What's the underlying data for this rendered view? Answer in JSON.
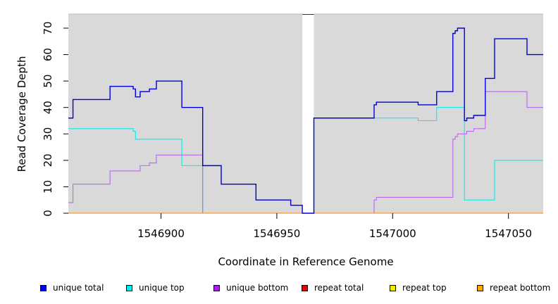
{
  "chart_data": {
    "type": "line",
    "xlabel": "Coordinate in Reference Genome",
    "ylabel": "Read Coverage Depth",
    "xlim": [
      1546860,
      1547065
    ],
    "ylim": [
      0,
      75
    ],
    "x_ticks": [
      1546900,
      1546950,
      1547000,
      1547050
    ],
    "x_tick_labels": [
      "1546900",
      "1546950",
      "1547000",
      "1547050"
    ],
    "y_ticks": [
      0,
      10,
      20,
      30,
      40,
      50,
      60,
      70
    ],
    "y_tick_labels": [
      "0",
      "10",
      "20",
      "30",
      "40",
      "50",
      "60",
      "70"
    ],
    "background_color": "#d9d9d9",
    "gap_color": "#ffffff",
    "segments": [
      {
        "x_start": 1546860,
        "x_end": 1546961
      },
      {
        "x_start": 1546966,
        "x_end": 1547065
      }
    ],
    "legend_position": "bottom",
    "series": [
      {
        "name": "unique total",
        "color": "#0000dd",
        "points": [
          [
            1546860,
            36
          ],
          [
            1546862,
            36
          ],
          [
            1546862,
            43
          ],
          [
            1546878,
            43
          ],
          [
            1546878,
            48
          ],
          [
            1546888,
            48
          ],
          [
            1546888,
            47
          ],
          [
            1546889,
            47
          ],
          [
            1546889,
            44
          ],
          [
            1546891,
            44
          ],
          [
            1546891,
            46
          ],
          [
            1546895,
            46
          ],
          [
            1546895,
            47
          ],
          [
            1546898,
            47
          ],
          [
            1546898,
            50
          ],
          [
            1546909,
            50
          ],
          [
            1546909,
            40
          ],
          [
            1546918,
            40
          ],
          [
            1546918,
            18
          ],
          [
            1546926,
            18
          ],
          [
            1546926,
            11
          ],
          [
            1546941,
            11
          ],
          [
            1546941,
            5
          ],
          [
            1546956,
            5
          ],
          [
            1546956,
            3
          ],
          [
            1546961,
            3
          ],
          [
            1546961,
            0
          ],
          [
            1546966,
            0
          ],
          [
            1546966,
            36
          ],
          [
            1546992,
            36
          ],
          [
            1546992,
            41
          ],
          [
            1546993,
            41
          ],
          [
            1546993,
            42
          ],
          [
            1547011,
            42
          ],
          [
            1547011,
            41
          ],
          [
            1547019,
            41
          ],
          [
            1547019,
            46
          ],
          [
            1547026,
            46
          ],
          [
            1547026,
            68
          ],
          [
            1547027,
            68
          ],
          [
            1547027,
            69
          ],
          [
            1547028,
            69
          ],
          [
            1547028,
            70
          ],
          [
            1547031,
            70
          ],
          [
            1547031,
            35
          ],
          [
            1547032,
            35
          ],
          [
            1547032,
            36
          ],
          [
            1547035,
            36
          ],
          [
            1547035,
            37
          ],
          [
            1547040,
            37
          ],
          [
            1547040,
            51
          ],
          [
            1547044,
            51
          ],
          [
            1547044,
            66
          ],
          [
            1547058,
            66
          ],
          [
            1547058,
            60
          ],
          [
            1547065,
            60
          ]
        ]
      },
      {
        "name": "unique top",
        "color": "#00eeee",
        "points": [
          [
            1546860,
            32
          ],
          [
            1546888,
            32
          ],
          [
            1546888,
            31
          ],
          [
            1546889,
            31
          ],
          [
            1546889,
            28
          ],
          [
            1546909,
            28
          ],
          [
            1546909,
            18
          ],
          [
            1546918,
            18
          ],
          [
            1546918,
            0
          ],
          [
            1546961,
            0
          ],
          [
            1546966,
            0
          ],
          [
            1546966,
            36
          ],
          [
            1547011,
            36
          ],
          [
            1547011,
            35
          ],
          [
            1547019,
            35
          ],
          [
            1547019,
            40
          ],
          [
            1547031,
            40
          ],
          [
            1547031,
            5
          ],
          [
            1547044,
            5
          ],
          [
            1547044,
            20
          ],
          [
            1547065,
            20
          ]
        ]
      },
      {
        "name": "unique bottom",
        "color": "#bb66ee",
        "points": [
          [
            1546860,
            4
          ],
          [
            1546862,
            4
          ],
          [
            1546862,
            11
          ],
          [
            1546878,
            11
          ],
          [
            1546878,
            16
          ],
          [
            1546891,
            16
          ],
          [
            1546891,
            18
          ],
          [
            1546895,
            18
          ],
          [
            1546895,
            19
          ],
          [
            1546898,
            19
          ],
          [
            1546898,
            22
          ],
          [
            1546918,
            22
          ],
          [
            1546918,
            0
          ],
          [
            1546961,
            0
          ],
          [
            1546966,
            0
          ],
          [
            1546992,
            0
          ],
          [
            1546992,
            5
          ],
          [
            1546993,
            5
          ],
          [
            1546993,
            6
          ],
          [
            1547026,
            6
          ],
          [
            1547026,
            28
          ],
          [
            1547027,
            28
          ],
          [
            1547027,
            29
          ],
          [
            1547028,
            29
          ],
          [
            1547028,
            30
          ],
          [
            1547032,
            30
          ],
          [
            1547032,
            31
          ],
          [
            1547035,
            31
          ],
          [
            1547035,
            32
          ],
          [
            1547040,
            32
          ],
          [
            1547040,
            46
          ],
          [
            1547058,
            46
          ],
          [
            1547058,
            40
          ],
          [
            1547065,
            40
          ]
        ]
      },
      {
        "name": "repeat total",
        "color": "#ee0000",
        "points": [
          [
            1546860,
            0
          ],
          [
            1547065,
            0
          ]
        ]
      },
      {
        "name": "repeat top",
        "color": "#eeee00",
        "points": [
          [
            1546860,
            0
          ],
          [
            1547065,
            0
          ]
        ]
      },
      {
        "name": "repeat bottom",
        "color": "#ff8c00",
        "points": [
          [
            1546860,
            0
          ],
          [
            1547065,
            0
          ]
        ]
      }
    ],
    "legend": [
      {
        "label": "unique total",
        "color": "#0000ee"
      },
      {
        "label": "unique top",
        "color": "#00eeee"
      },
      {
        "label": "unique bottom",
        "color": "#a020f0"
      },
      {
        "label": "repeat total",
        "color": "#ee0000"
      },
      {
        "label": "repeat top",
        "color": "#eeee00"
      },
      {
        "label": "repeat bottom",
        "color": "#ffa500"
      }
    ]
  }
}
